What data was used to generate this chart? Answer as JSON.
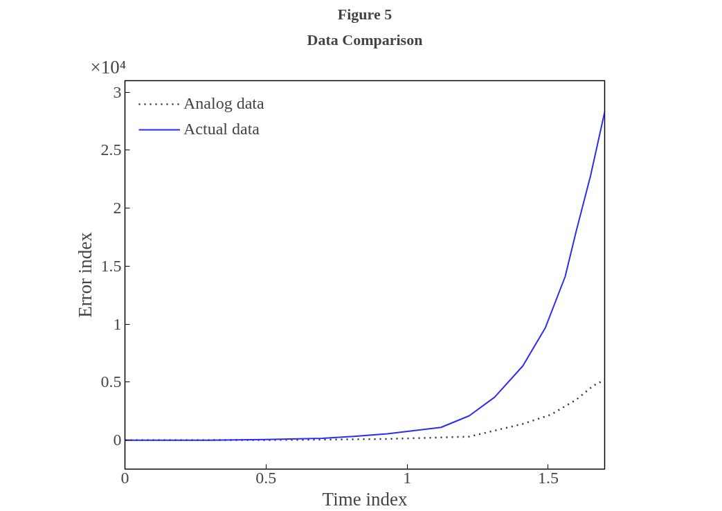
{
  "chart_data": {
    "type": "line",
    "title": "Figure 5",
    "subtitle": "Data Comparison",
    "xlabel": "Time index",
    "ylabel": "Error index",
    "annotations": [
      "×10⁴"
    ],
    "xlim": [
      0,
      1.7
    ],
    "xticks": [
      0,
      0.5,
      1,
      1.5
    ],
    "ylim": [
      -0.25,
      3.1
    ],
    "yticks": [
      0,
      0.5,
      1,
      1.5,
      2,
      2.5,
      3
    ],
    "grid": false,
    "legend": "top left",
    "series": [
      {
        "name": "Analog data",
        "color": "#333333",
        "line_style": "dotted",
        "x": [
          0,
          0.3,
          0.6,
          0.93,
          1.22,
          1.41,
          1.51,
          1.6,
          1.66,
          1.7
        ],
        "values": [
          0,
          0,
          0.002,
          0.01,
          0.03,
          0.14,
          0.22,
          0.35,
          0.47,
          0.52
        ]
      },
      {
        "name": "Actual data",
        "color": "#2a2aff",
        "line_style": "solid",
        "x": [
          0,
          0.3,
          0.5,
          0.7,
          0.8,
          0.93,
          1.12,
          1.22,
          1.31,
          1.41,
          1.49,
          1.56,
          1.6,
          1.65,
          1.7
        ],
        "values": [
          0,
          0,
          0.005,
          0.015,
          0.03,
          0.054,
          0.11,
          0.21,
          0.37,
          0.64,
          0.97,
          1.41,
          1.81,
          2.28,
          2.83
        ]
      }
    ]
  }
}
